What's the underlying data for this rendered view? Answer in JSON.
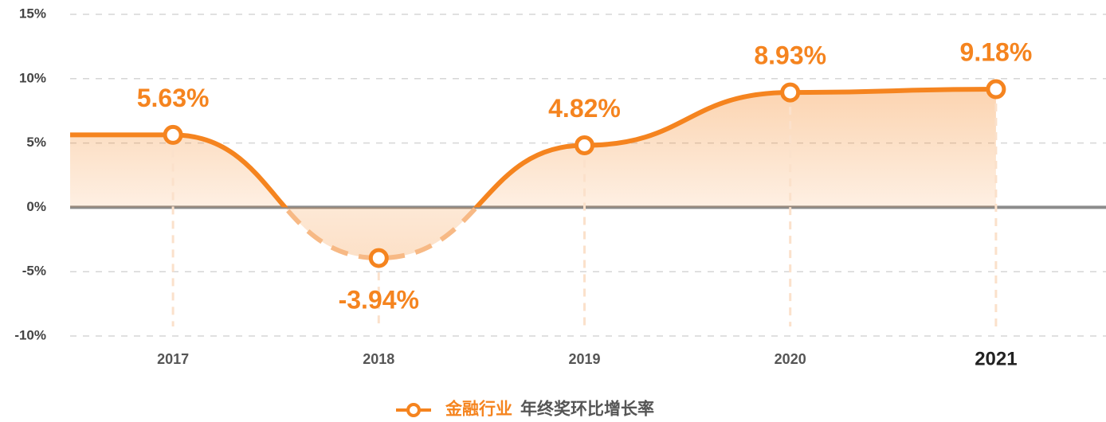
{
  "chart_data": {
    "type": "line",
    "categories": [
      "2017",
      "2018",
      "2019",
      "2020",
      "2021"
    ],
    "series": [
      {
        "name": "金融行业",
        "color": "#f5841f",
        "values": [
          5.63,
          -3.94,
          4.82,
          8.93,
          9.18
        ],
        "value_labels": [
          "5.63%",
          "-3.94%",
          "4.82%",
          "8.93%",
          "9.18%"
        ]
      }
    ],
    "legend_label": "年终奖环比增长率",
    "ylim": [
      -10,
      15
    ],
    "yticks": [
      {
        "value": -10,
        "label": "-10%"
      },
      {
        "value": -5,
        "label": "-5%"
      },
      {
        "value": 0,
        "label": "0%"
      },
      {
        "value": 5,
        "label": "5%"
      },
      {
        "value": 10,
        "label": "10%"
      },
      {
        "value": 15,
        "label": "15%"
      }
    ],
    "grid": true,
    "legend": "bottom",
    "highlight_index": 4
  }
}
